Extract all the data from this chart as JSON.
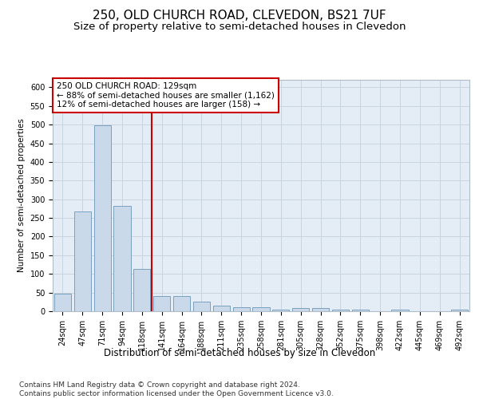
{
  "title1": "250, OLD CHURCH ROAD, CLEVEDON, BS21 7UF",
  "title2": "Size of property relative to semi-detached houses in Clevedon",
  "xlabel": "Distribution of semi-detached houses by size in Clevedon",
  "ylabel": "Number of semi-detached properties",
  "categories": [
    "24sqm",
    "47sqm",
    "71sqm",
    "94sqm",
    "118sqm",
    "141sqm",
    "164sqm",
    "188sqm",
    "211sqm",
    "235sqm",
    "258sqm",
    "281sqm",
    "305sqm",
    "328sqm",
    "352sqm",
    "375sqm",
    "398sqm",
    "422sqm",
    "445sqm",
    "469sqm",
    "492sqm"
  ],
  "values": [
    48,
    267,
    499,
    282,
    113,
    41,
    41,
    26,
    14,
    11,
    10,
    5,
    8,
    8,
    5,
    5,
    0,
    4,
    0,
    0,
    4
  ],
  "bar_color": "#c9d9ea",
  "bar_edge_color": "#7aa0be",
  "grid_color": "#c8d4e0",
  "background_color": "#e4edf5",
  "vline_x": 4.5,
  "vline_color": "#cc0000",
  "annotation_box_text": "250 OLD CHURCH ROAD: 129sqm\n← 88% of semi-detached houses are smaller (1,162)\n12% of semi-detached houses are larger (158) →",
  "annotation_box_color": "#cc0000",
  "ylim": [
    0,
    620
  ],
  "yticks": [
    0,
    50,
    100,
    150,
    200,
    250,
    300,
    350,
    400,
    450,
    500,
    550,
    600
  ],
  "footnote": "Contains HM Land Registry data © Crown copyright and database right 2024.\nContains public sector information licensed under the Open Government Licence v3.0.",
  "title1_fontsize": 11,
  "title2_fontsize": 9.5,
  "xlabel_fontsize": 8.5,
  "ylabel_fontsize": 7.5,
  "tick_fontsize": 7,
  "annotation_fontsize": 7.5,
  "footnote_fontsize": 6.5
}
